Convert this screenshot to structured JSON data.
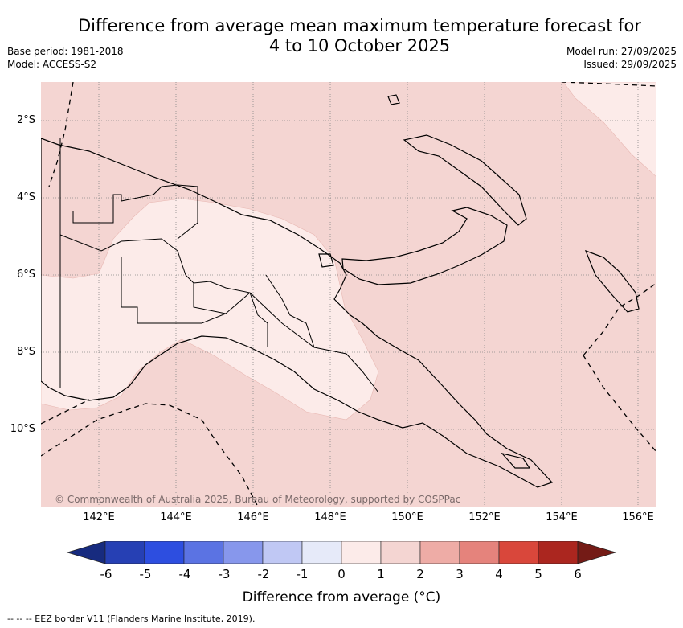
{
  "header": {
    "title_line1": "Difference from average mean maximum temperature forecast for",
    "title_line2": "4 to 10 October 2025",
    "base_period": "Base period: 1981-2018",
    "model": "Model: ACCESS-S2",
    "model_run": "Model run: 27/09/2025",
    "issued": "Issued: 29/09/2025"
  },
  "map": {
    "lat_labels": [
      "2°S",
      "4°S",
      "6°S",
      "8°S",
      "10°S"
    ],
    "lon_labels": [
      "142°E",
      "144°E",
      "146°E",
      "148°E",
      "150°E",
      "152°E",
      "154°E",
      "156°E"
    ],
    "copyright": "© Commonwealth of Australia 2025, Bureau of Meteorology, supported by COSPPac",
    "colors": {
      "anomaly_1_to_2": "#f4d5d2",
      "anomaly_0_to_1": "#fcebe9",
      "grid": "#888888",
      "coastline": "#000000"
    }
  },
  "colorbar": {
    "ticks": [
      "-6",
      "-5",
      "-4",
      "-3",
      "-2",
      "-1",
      "0",
      "1",
      "2",
      "3",
      "4",
      "5",
      "6"
    ],
    "colors": [
      "#172b7f",
      "#2640b4",
      "#2d4ee0",
      "#5b73e3",
      "#8797ec",
      "#c0c8f4",
      "#e6eaf9",
      "#fcebe9",
      "#f4d5d2",
      "#eeaca6",
      "#e5837c",
      "#d9473b",
      "#ab261f",
      "#741b16"
    ],
    "label": "Difference from average (°C)"
  },
  "footer": {
    "text": "-- -- -- EEZ border V11 (Flanders Marine Institute, 2019)."
  }
}
